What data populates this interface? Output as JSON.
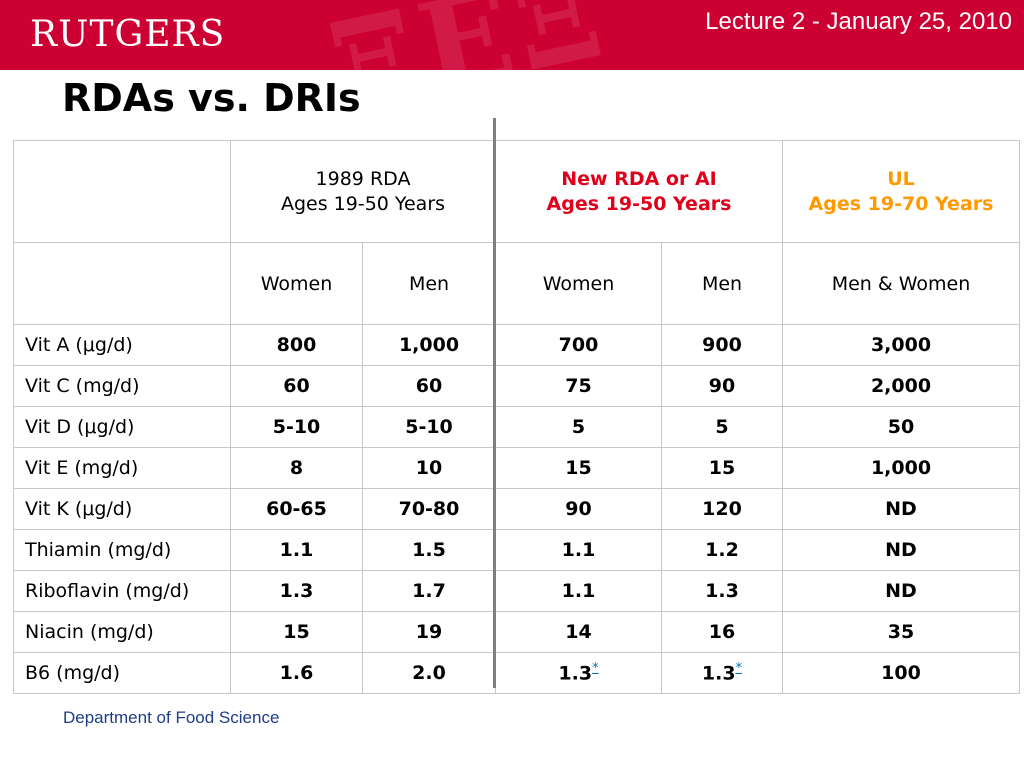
{
  "header": {
    "logo_text": "RUTGERS",
    "lecture": "Lecture 2 - January 25, 2010",
    "colors": {
      "banner": "#cc0033",
      "new_rda": "#e0001b",
      "ul": "#ff9900",
      "footnote": "#0070c0",
      "footer": "#1f3c88"
    }
  },
  "slide": {
    "title": "RDAs vs. DRIs"
  },
  "table": {
    "group_headers": {
      "rda1989": {
        "line1": "1989 RDA",
        "line2": "Ages 19-50 Years"
      },
      "new_rda": {
        "line1": "New RDA or AI",
        "line2": "Ages 19-50 Years"
      },
      "ul": {
        "line1": "UL",
        "line2": "Ages 19-70 Years"
      }
    },
    "sub_headers": [
      "Women",
      "Men",
      "Women",
      "Men",
      "Men & Women"
    ],
    "rows": [
      {
        "label": "Vit A (μg/d)",
        "values": [
          "800",
          "1,000",
          "700",
          "900",
          "3,000"
        ]
      },
      {
        "label": "Vit C (mg/d)",
        "values": [
          "60",
          "60",
          "75",
          "90",
          "2,000"
        ]
      },
      {
        "label": "Vit D (μg/d)",
        "values": [
          "5-10",
          "5-10",
          "5",
          "5",
          "50"
        ]
      },
      {
        "label": "Vit E (mg/d)",
        "values": [
          "8",
          "10",
          "15",
          "15",
          "1,000"
        ]
      },
      {
        "label": "Vit K (μg/d)",
        "values": [
          "60-65",
          "70-80",
          "90",
          "120",
          "ND"
        ]
      },
      {
        "label": "Thiamin (mg/d)",
        "values": [
          "1.1",
          "1.5",
          "1.1",
          "1.2",
          "ND"
        ]
      },
      {
        "label": "Riboflavin (mg/d)",
        "values": [
          "1.3",
          "1.7",
          "1.1",
          "1.3",
          "ND"
        ]
      },
      {
        "label": "Niacin (mg/d)",
        "values": [
          "15",
          "19",
          "14",
          "16",
          "35"
        ]
      },
      {
        "label": "B6 (mg/d)",
        "values": [
          "1.6",
          "2.0",
          "1.3",
          "1.3",
          "100"
        ]
      }
    ],
    "footnote_marker": "*"
  },
  "footer": {
    "text": "Department of Food Science"
  }
}
